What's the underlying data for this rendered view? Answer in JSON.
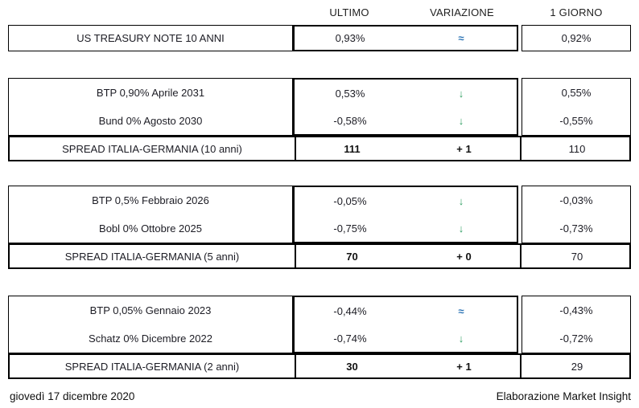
{
  "columns": {
    "ultimo": "ULTIMO",
    "variazione": "VARIAZIONE",
    "giorno": "1 GIORNO"
  },
  "blocks": [
    {
      "rows": [
        {
          "label": "US TREASURY NOTE 10 ANNI",
          "ultimo": "0,93%",
          "var_glyph": "≈",
          "var_class": "var-flat",
          "giorno": "0,92%"
        }
      ]
    },
    {
      "rows": [
        {
          "label": "BTP 0,90% Aprile 2031",
          "ultimo": "0,53%",
          "var_glyph": "↓",
          "var_class": "var-down",
          "giorno": "0,55%"
        },
        {
          "label": "Bund 0% Agosto 2030",
          "ultimo": "-0,58%",
          "var_glyph": "↓",
          "var_class": "var-down",
          "giorno": "-0,55%"
        }
      ],
      "spread": {
        "label": "SPREAD ITALIA-GERMANIA (10 anni)",
        "ultimo": "111",
        "variazione": "+ 1",
        "var_class": "var-up-red",
        "giorno": "110"
      }
    },
    {
      "rows": [
        {
          "label": "BTP 0,5% Febbraio 2026",
          "ultimo": "-0,05%",
          "var_glyph": "↓",
          "var_class": "var-down",
          "giorno": "-0,03%"
        },
        {
          "label": "Bobl 0% Ottobre 2025",
          "ultimo": "-0,75%",
          "var_glyph": "↓",
          "var_class": "var-down",
          "giorno": "-0,73%"
        }
      ],
      "spread": {
        "label": "SPREAD ITALIA-GERMANIA (5 anni)",
        "ultimo": "70",
        "variazione": "+ 0",
        "var_class": "var-zero",
        "giorno": "70"
      }
    },
    {
      "rows": [
        {
          "label": "BTP 0,05% Gennaio 2023",
          "ultimo": "-0,44%",
          "var_glyph": "≈",
          "var_class": "var-flat",
          "giorno": "-0,43%"
        },
        {
          "label": "Schatz 0% Dicembre 2022",
          "ultimo": "-0,74%",
          "var_glyph": "↓",
          "var_class": "var-down",
          "giorno": "-0,72%"
        }
      ],
      "spread": {
        "label": "SPREAD ITALIA-GERMANIA (2 anni)",
        "ultimo": "30",
        "variazione": "+ 1",
        "var_class": "var-up-red",
        "giorno": "29"
      }
    }
  ],
  "footer": {
    "date": "giovedì 17 dicembre 2020",
    "credit": "Elaborazione Market Insight"
  },
  "colors": {
    "down_green": "#2f9e62",
    "flat_blue": "#2e75b6",
    "up_red": "#bd2e35",
    "border": "#000000"
  }
}
